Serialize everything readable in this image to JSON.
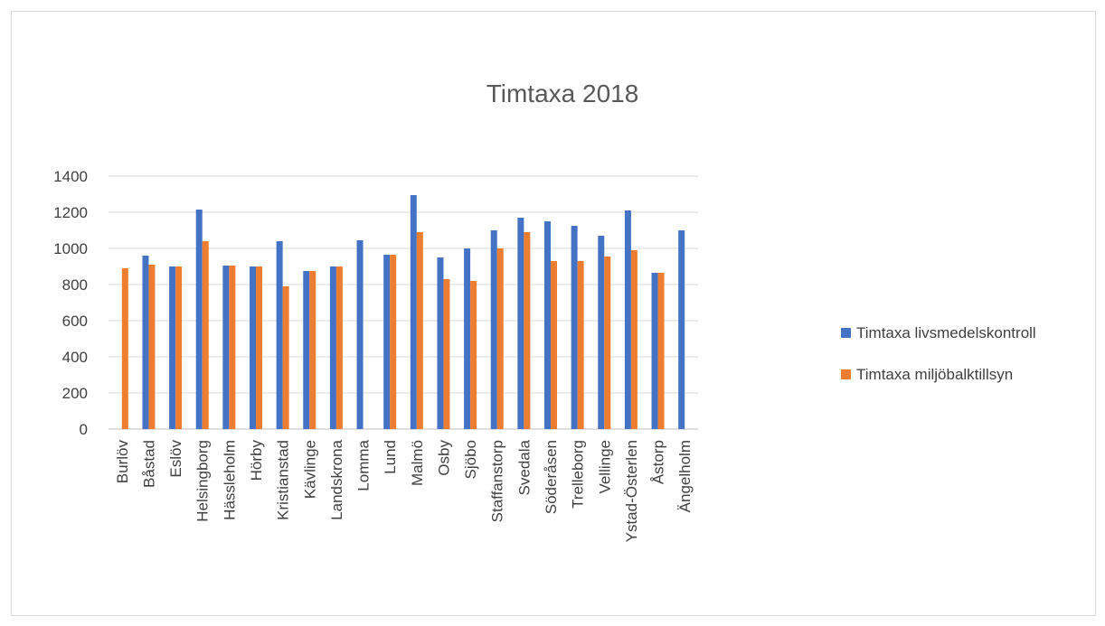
{
  "chart_data": {
    "type": "bar",
    "title": "Timtaxa 2018",
    "categories": [
      "Burlöv",
      "Båstad",
      "Eslöv",
      "Helsingborg",
      "Hässleholm",
      "Hörby",
      "Kristianstad",
      "Kävlinge",
      "Landskrona",
      "Lomma",
      "Lund",
      "Malmö",
      "Osby",
      "Sjöbo",
      "Staffanstorp",
      "Svedala",
      "Söderåsen",
      "Trelleborg",
      "Vellinge",
      "Ystad-Österlen",
      "Åstorp",
      "Ängelholm"
    ],
    "series": [
      {
        "name": "Timtaxa livsmedelskontroll",
        "color": "#4472C4",
        "values": [
          null,
          960,
          900,
          1215,
          905,
          900,
          1040,
          875,
          900,
          1045,
          965,
          1295,
          950,
          1000,
          1100,
          1170,
          1150,
          1125,
          1070,
          1210,
          865,
          1100
        ]
      },
      {
        "name": "Timtaxa miljöbalktillsyn",
        "color": "#ED7D31",
        "values": [
          890,
          910,
          900,
          1040,
          905,
          900,
          790,
          875,
          900,
          null,
          965,
          1090,
          830,
          820,
          1000,
          1090,
          930,
          930,
          955,
          990,
          865,
          null
        ]
      }
    ],
    "ylim": [
      0,
      1400
    ],
    "yticks": [
      0,
      200,
      400,
      600,
      800,
      1000,
      1200,
      1400
    ],
    "grid": true,
    "legend": "right"
  }
}
